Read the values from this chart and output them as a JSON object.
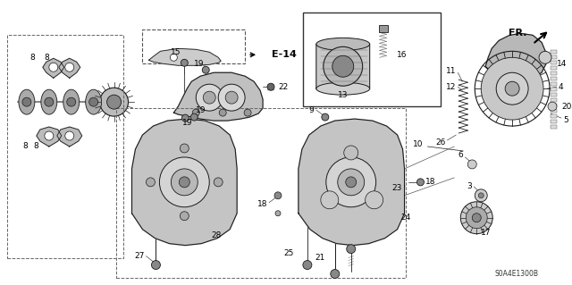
{
  "bg_color": "#ffffff",
  "diagram_code": "S0A4E1300B",
  "line_color": "#1a1a1a",
  "gray_fill": "#c8c8c8",
  "light_gray": "#e8e8e8",
  "dark_gray": "#888888",
  "fs_label": 6.5,
  "fs_code": 5.5,
  "fs_ref": 8.5,
  "lw_main": 0.7,
  "lw_thin": 0.4,
  "lw_thick": 1.0,
  "dashed_color": "#555555"
}
